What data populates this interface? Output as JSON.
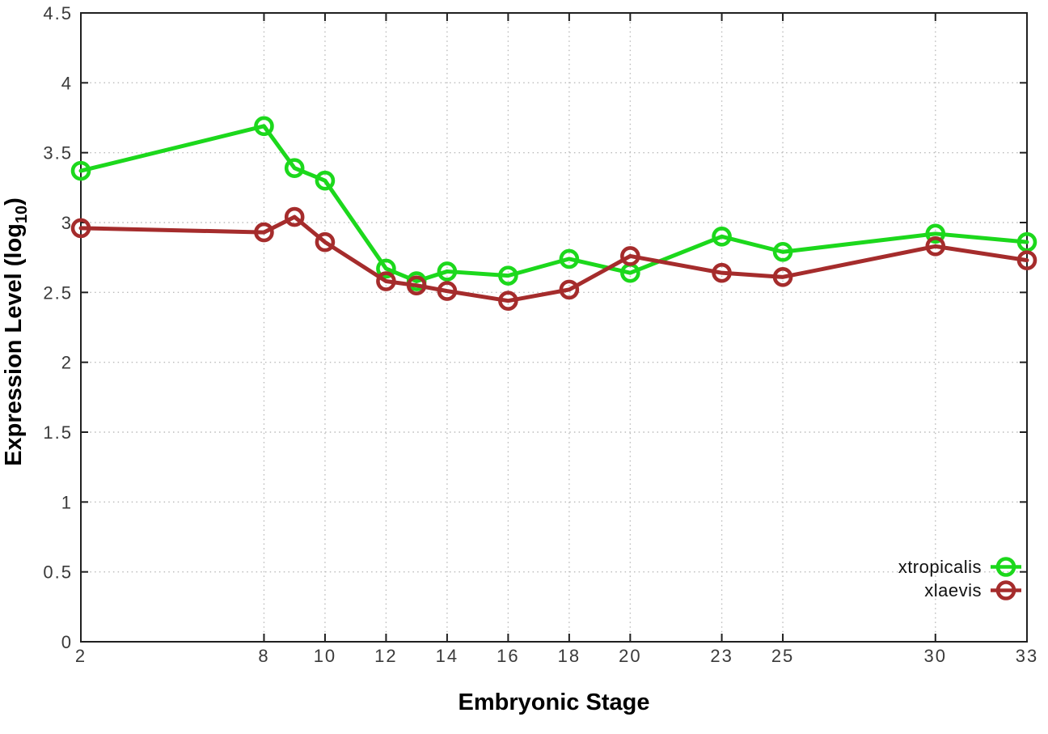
{
  "chart_data": {
    "type": "line",
    "title": "",
    "xlabel": "Embryonic Stage",
    "ylabel": "Expression Level (log10)",
    "ylabel_parts": {
      "pre": "Expression Level (log",
      "sub": "10",
      "post": ")"
    },
    "x": [
      2,
      8,
      9,
      10,
      12,
      13,
      14,
      16,
      18,
      20,
      23,
      25,
      30,
      33
    ],
    "series": [
      {
        "name": "xtropicalis",
        "color": "#1cd81c",
        "values": [
          3.37,
          3.69,
          3.39,
          3.3,
          2.67,
          2.58,
          2.65,
          2.62,
          2.74,
          2.64,
          2.9,
          2.79,
          2.92,
          2.86
        ]
      },
      {
        "name": "xlaevis",
        "color": "#a52c2c",
        "values": [
          2.96,
          2.93,
          3.04,
          2.86,
          2.58,
          2.55,
          2.51,
          2.44,
          2.52,
          2.76,
          2.64,
          2.61,
          2.83,
          2.73
        ]
      }
    ],
    "x_ticks": [
      2,
      8,
      10,
      12,
      14,
      16,
      18,
      20,
      23,
      25,
      30,
      33
    ],
    "y_ticks": [
      0,
      0.5,
      1,
      1.5,
      2,
      2.5,
      3,
      3.5,
      4,
      4.5
    ],
    "xlim": [
      2,
      33
    ],
    "ylim": [
      0,
      4.5
    ],
    "grid": "dotted",
    "legend_position": "bottom-right",
    "marker": "open-circle",
    "colors": {
      "border": "#202020",
      "grid": "#bbbbbb",
      "tick_label": "#3a3a3a",
      "axis_title": "#000000",
      "background": "#ffffff"
    }
  }
}
